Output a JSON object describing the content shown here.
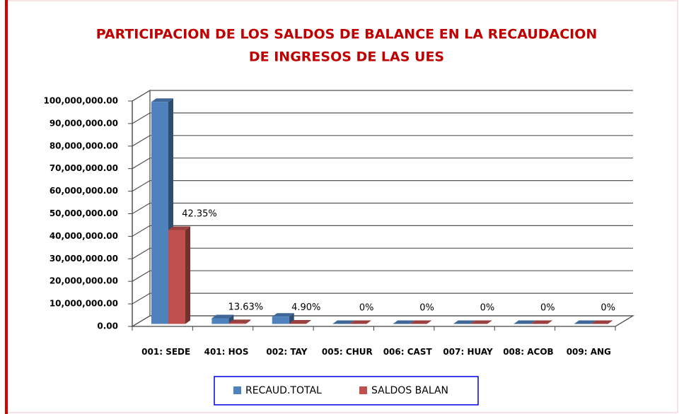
{
  "chart_data": {
    "type": "bar3d",
    "title": [
      "PARTICIPACION DE LOS SALDOS DE BALANCE  EN LA RECAUDACION",
      "DE INGRESOS DE LAS UES"
    ],
    "categories": [
      "001: SEDE",
      "401: HOS",
      "002: TAY",
      "005: CHUR",
      "006: CAST",
      "007: HUAY",
      "008: ACOB",
      "009: ANG"
    ],
    "series": [
      {
        "name": "RECAUD.TOTAL",
        "color": "#4f81bd",
        "values": [
          98500000,
          2500000,
          3200000,
          0,
          0,
          0,
          0,
          0
        ]
      },
      {
        "name": "SALDOS BALAN",
        "color": "#c0504d",
        "values": [
          41700000,
          340000,
          157000,
          0,
          0,
          0,
          0,
          0
        ]
      }
    ],
    "annotations": [
      "42.35%",
      "13.63%",
      "4.90%",
      "0%",
      "0%",
      "0%",
      "0%",
      "0%"
    ],
    "ylim": [
      0,
      100000000
    ],
    "yticks": [
      {
        "value": 0,
        "label": "0.00"
      },
      {
        "value": 10000000,
        "label": "10,000,000.00"
      },
      {
        "value": 20000000,
        "label": "20,000,000.00"
      },
      {
        "value": 30000000,
        "label": "30,000,000.00"
      },
      {
        "value": 40000000,
        "label": "40,000,000.00"
      },
      {
        "value": 50000000,
        "label": "50,000,000.00"
      },
      {
        "value": 60000000,
        "label": "60,000,000.00"
      },
      {
        "value": 70000000,
        "label": "70,000,000.00"
      },
      {
        "value": 80000000,
        "label": "80,000,000.00"
      },
      {
        "value": 90000000,
        "label": "90,000,000.00"
      },
      {
        "value": 100000000,
        "label": "100,000,000.00"
      }
    ],
    "grid": true
  }
}
